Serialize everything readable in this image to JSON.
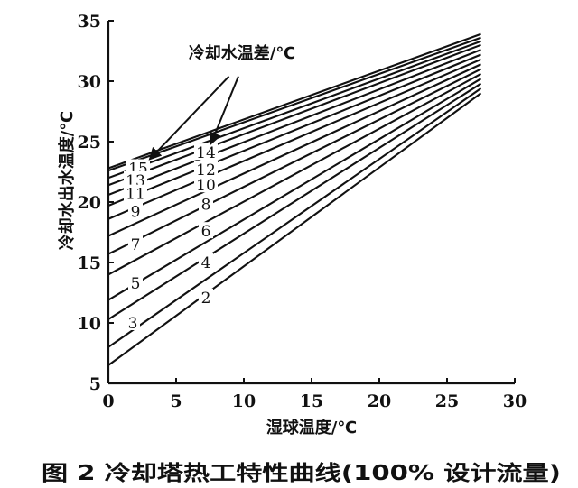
{
  "chart_data": {
    "type": "line",
    "title": "",
    "caption": "图 2  冷却塔热工特性曲线(100% 设计流量)",
    "xlabel": "湿球温度/℃",
    "ylabel": "冷却水出水温度/℃",
    "xlim": [
      0,
      30
    ],
    "ylim": [
      5,
      35
    ],
    "xticks": [
      0,
      5,
      10,
      15,
      20,
      25,
      30
    ],
    "yticks": [
      5,
      10,
      15,
      20,
      25,
      30,
      35
    ],
    "grid": false,
    "legend_title": "冷却水温差/℃",
    "series": [
      {
        "name": "2",
        "x": [
          0,
          27.5
        ],
        "y": [
          6.5,
          29.0
        ]
      },
      {
        "name": "3",
        "x": [
          0,
          27.5
        ],
        "y": [
          8.0,
          29.4
        ]
      },
      {
        "name": "4",
        "x": [
          0,
          27.5
        ],
        "y": [
          10.3,
          29.8
        ]
      },
      {
        "name": "5",
        "x": [
          0,
          27.5
        ],
        "y": [
          11.9,
          30.2
        ]
      },
      {
        "name": "6",
        "x": [
          0,
          27.5
        ],
        "y": [
          14.0,
          30.6
        ]
      },
      {
        "name": "7",
        "x": [
          0,
          27.5
        ],
        "y": [
          15.7,
          31.0
        ]
      },
      {
        "name": "8",
        "x": [
          0,
          27.5
        ],
        "y": [
          17.2,
          31.4
        ]
      },
      {
        "name": "9",
        "x": [
          0,
          27.5
        ],
        "y": [
          18.6,
          31.8
        ]
      },
      {
        "name": "10",
        "x": [
          0,
          27.5
        ],
        "y": [
          19.7,
          32.2
        ]
      },
      {
        "name": "11",
        "x": [
          0,
          27.5
        ],
        "y": [
          20.6,
          32.6
        ]
      },
      {
        "name": "12",
        "x": [
          0,
          27.5
        ],
        "y": [
          21.4,
          33.0
        ]
      },
      {
        "name": "13",
        "x": [
          0,
          27.5
        ],
        "y": [
          22.0,
          33.3
        ]
      },
      {
        "name": "14",
        "x": [
          0,
          27.5
        ],
        "y": [
          22.6,
          33.6
        ]
      },
      {
        "name": "15",
        "x": [
          0,
          27.5
        ],
        "y": [
          22.8,
          33.9
        ]
      }
    ],
    "curve_labels": [
      {
        "text": "15",
        "x": 2.2,
        "y": 22.8
      },
      {
        "text": "13",
        "x": 2.0,
        "y": 21.8
      },
      {
        "text": "11",
        "x": 2.0,
        "y": 20.7
      },
      {
        "text": "9",
        "x": 2.0,
        "y": 19.2
      },
      {
        "text": "7",
        "x": 2.0,
        "y": 16.5
      },
      {
        "text": "5",
        "x": 2.0,
        "y": 13.3
      },
      {
        "text": "3",
        "x": 1.8,
        "y": 10.0
      },
      {
        "text": "14",
        "x": 7.2,
        "y": 24.1
      },
      {
        "text": "12",
        "x": 7.2,
        "y": 22.7
      },
      {
        "text": "10",
        "x": 7.2,
        "y": 21.4
      },
      {
        "text": "8",
        "x": 7.2,
        "y": 19.8
      },
      {
        "text": "6",
        "x": 7.2,
        "y": 17.6
      },
      {
        "text": "4",
        "x": 7.2,
        "y": 15.0
      },
      {
        "text": "2",
        "x": 7.2,
        "y": 12.1
      }
    ],
    "annotation_arrows": [
      {
        "from": [
          8.9,
          30.4
        ],
        "to": [
          3.1,
          23.6
        ]
      },
      {
        "from": [
          9.6,
          30.4
        ],
        "to": [
          7.6,
          24.9
        ]
      }
    ]
  }
}
